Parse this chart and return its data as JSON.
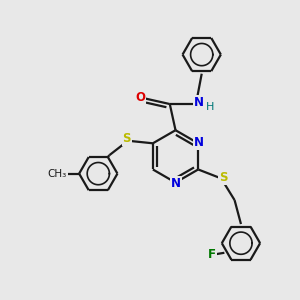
{
  "bg": "#e8e8e8",
  "bc": "#1a1a1a",
  "nc": "#0000dd",
  "oc": "#dd0000",
  "sc": "#bbbb00",
  "fc": "#007700",
  "hc": "#007777",
  "lw": 1.6,
  "dbo": 0.12
}
